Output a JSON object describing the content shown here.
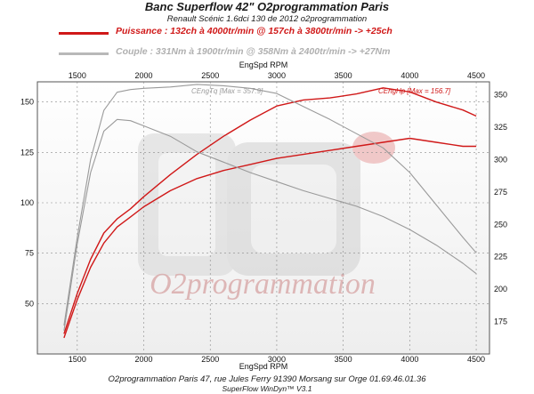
{
  "header": {
    "title": "Banc Superflow 42\" O2programmation Paris",
    "subtitle": "Renault Scénic 1.6dci 130 de 2012 o2programmation"
  },
  "legend": {
    "power": "Puissance : 132ch à 4000tr/min @ 157ch à 3800tr/min  -> +25ch",
    "torque": "Couple : 331Nm à 1900tr/min @ 358Nm à 2400tr/min -> +27Nm"
  },
  "footer": {
    "line1": "O2programmation Paris 47, rue Jules Ferry 91390 Morsang sur Orge 01.69.46.01.36",
    "line2": "SuperFlow WinDyn™ V3.1"
  },
  "watermark": "O2programmation",
  "colors": {
    "power": "#d01818",
    "torque": "#9a9a9a",
    "grid": "#8a8a8a",
    "plot_bg": "#ffffff"
  },
  "chart_data": {
    "type": "line",
    "xlabel": "EngSpd RPM",
    "xlabel_top": "EngSpd RPM",
    "xlim": [
      1200,
      4600
    ],
    "x_ticks": [
      1500,
      2000,
      2500,
      3000,
      3500,
      4000,
      4500
    ],
    "ylim_left": [
      25,
      160
    ],
    "y_left_ticks": [
      50,
      75,
      100,
      125,
      150
    ],
    "ylim_right": [
      150,
      360
    ],
    "y_right_ticks": [
      175,
      200,
      225,
      250,
      275,
      300,
      325,
      350
    ],
    "annotations": [
      {
        "text": "CEngTq [Max = 357.9]",
        "series": "torque_modified"
      },
      {
        "text": "CEngHp [Max = 156.7]",
        "series": "power_modified"
      }
    ],
    "series": [
      {
        "name": "power_stock",
        "axis": "left",
        "color": "#d01818",
        "x": [
          1400,
          1500,
          1600,
          1700,
          1800,
          1900,
          2000,
          2200,
          2400,
          2600,
          2800,
          3000,
          3200,
          3400,
          3600,
          3800,
          4000,
          4200,
          4400,
          4500
        ],
        "y": [
          33,
          52,
          68,
          80,
          88,
          93,
          98,
          106,
          112,
          116,
          119,
          122,
          124,
          126,
          128,
          130,
          132,
          130,
          128,
          128
        ]
      },
      {
        "name": "power_modified",
        "axis": "left",
        "color": "#d01818",
        "x": [
          1400,
          1500,
          1600,
          1700,
          1800,
          1900,
          2000,
          2200,
          2400,
          2600,
          2800,
          3000,
          3200,
          3400,
          3600,
          3800,
          4000,
          4200,
          4400,
          4500
        ],
        "y": [
          35,
          55,
          72,
          85,
          92,
          97,
          103,
          114,
          124,
          133,
          141,
          148,
          151,
          152,
          154,
          157,
          155,
          150,
          146,
          143
        ]
      },
      {
        "name": "torque_stock",
        "axis": "right",
        "color": "#9a9a9a",
        "x": [
          1400,
          1500,
          1600,
          1700,
          1800,
          1900,
          2000,
          2200,
          2400,
          2600,
          2800,
          3000,
          3200,
          3400,
          3600,
          3800,
          4000,
          4200,
          4400,
          4500
        ],
        "y": [
          168,
          235,
          290,
          322,
          331,
          330,
          326,
          318,
          306,
          298,
          290,
          283,
          276,
          270,
          264,
          256,
          246,
          234,
          220,
          212
        ]
      },
      {
        "name": "torque_modified",
        "axis": "right",
        "color": "#9a9a9a",
        "x": [
          1400,
          1500,
          1600,
          1700,
          1800,
          1900,
          2000,
          2200,
          2400,
          2600,
          2800,
          3000,
          3200,
          3400,
          3600,
          3800,
          4000,
          4200,
          4400,
          4500
        ],
        "y": [
          172,
          240,
          300,
          338,
          352,
          354,
          355,
          356,
          358,
          357,
          355,
          351,
          341,
          331,
          320,
          309,
          290,
          265,
          240,
          228
        ]
      }
    ]
  }
}
